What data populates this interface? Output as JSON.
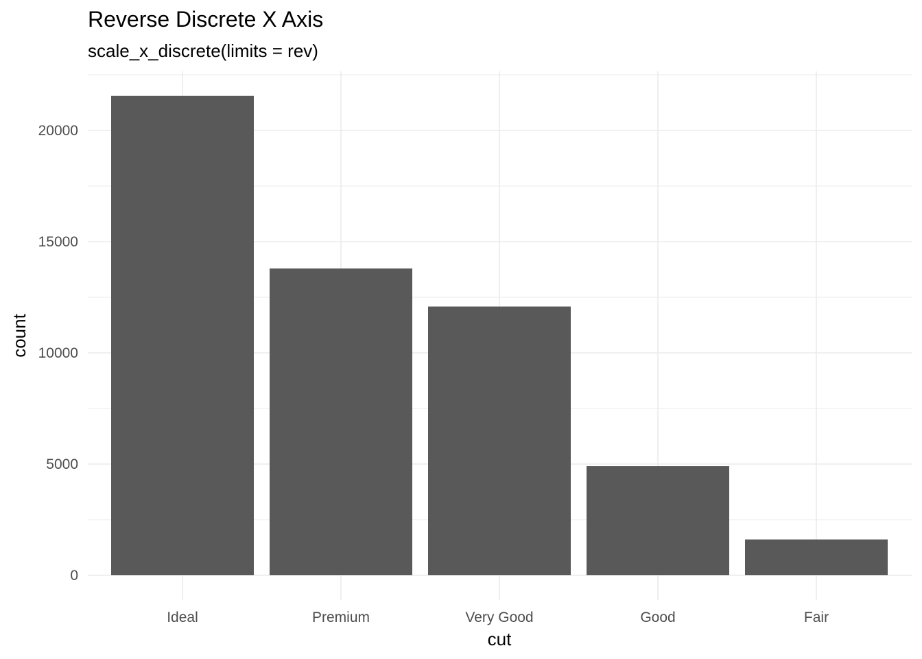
{
  "chart_data": {
    "type": "bar",
    "title": "Reverse Discrete X Axis",
    "subtitle": "scale_x_discrete(limits = rev)",
    "xlabel": "cut",
    "ylabel": "count",
    "categories": [
      "Ideal",
      "Premium",
      "Very Good",
      "Good",
      "Fair"
    ],
    "values": [
      21551,
      13791,
      12082,
      4906,
      1610
    ],
    "ylim": [
      0,
      22600
    ],
    "yticks": [
      0,
      5000,
      10000,
      15000,
      20000
    ],
    "grid": true,
    "theme": "minimal",
    "bar_color": "#595959",
    "grid_color": "#ebebeb"
  }
}
